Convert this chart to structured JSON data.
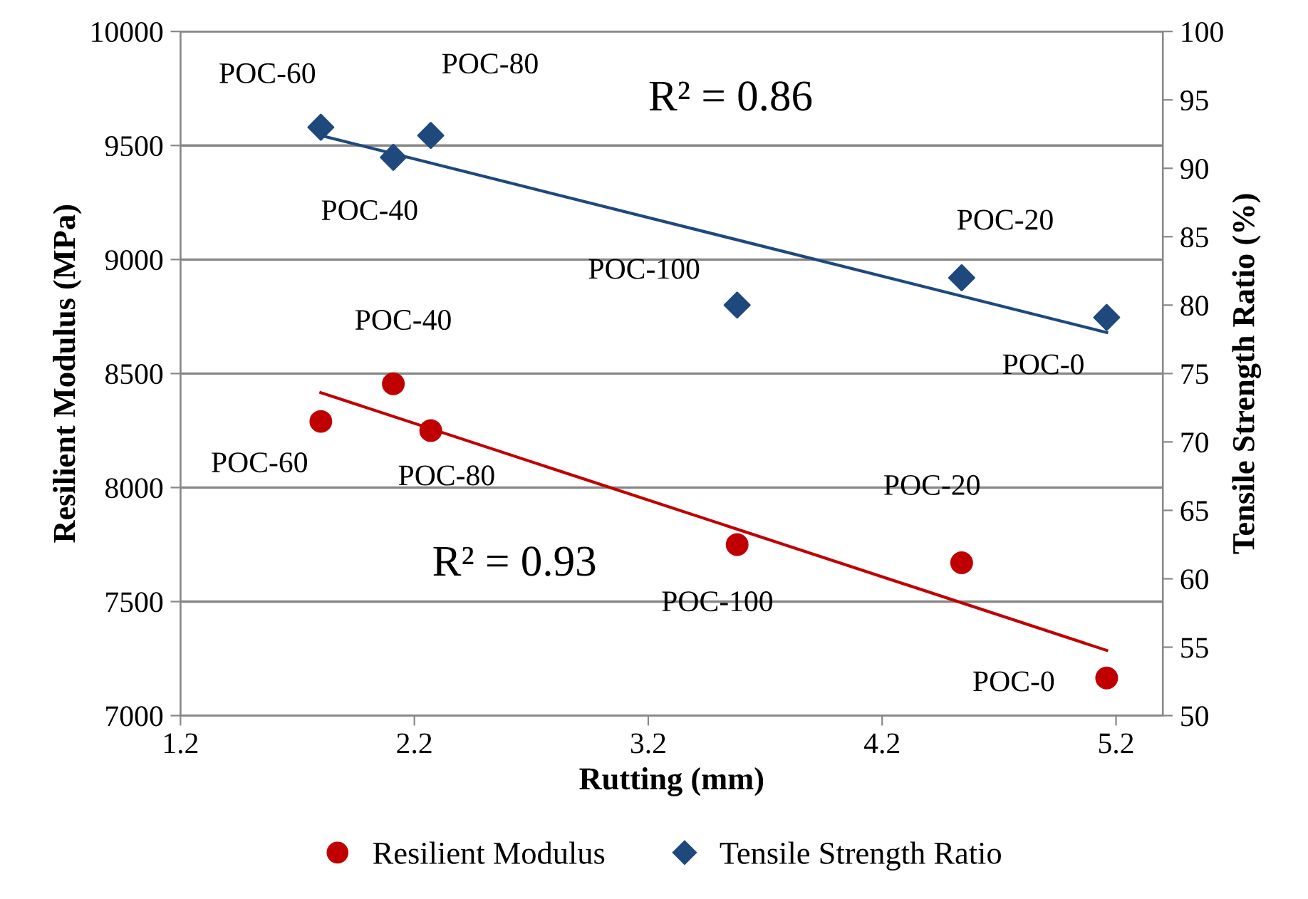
{
  "chart_data": {
    "type": "scatter",
    "xlabel": "Rutting (mm)",
    "ylabel": "Resilient Modulus (MPa)",
    "y2label": "Tensile Strength Ratio (%)",
    "xlim": [
      1.2,
      5.4
    ],
    "xticks": [
      1.2,
      2.2,
      3.2,
      4.2,
      5.2
    ],
    "ylim": [
      7000,
      10000
    ],
    "yticks": [
      7000,
      7500,
      8000,
      8500,
      9000,
      9500,
      10000
    ],
    "y2lim": [
      50,
      100
    ],
    "y2ticks": [
      50,
      55,
      60,
      65,
      70,
      75,
      80,
      85,
      90,
      95,
      100
    ],
    "grid": "y",
    "legend": "bottom",
    "series": [
      {
        "name": "Resilient Modulus",
        "color": "#c00000",
        "marker": "circle",
        "x": [
          1.8,
          2.11,
          2.27,
          3.58,
          4.54,
          5.16
        ],
        "values": [
          8290,
          8455,
          8250,
          7750,
          7670,
          7165
        ]
      },
      {
        "name": "Tensile Strength Ratio",
        "color": "#1f497d",
        "marker": "diamond",
        "axis": "y2",
        "x": [
          1.8,
          2.11,
          2.27,
          3.58,
          4.54,
          5.16
        ],
        "values": [
          93.0,
          90.8,
          92.4,
          80.0,
          82.0,
          79.1
        ]
      },
      {
        "type": "line",
        "color": "#c00000",
        "marker": "none",
        "x": [
          1.8,
          5.16
        ],
        "values": [
          8416,
          7286
        ]
      },
      {
        "type": "line",
        "color": "#1f497d",
        "marker": "none",
        "axis": "y2",
        "x": [
          1.8,
          5.16
        ],
        "values": [
          92.4,
          78.0
        ]
      }
    ],
    "annotations": [
      {
        "text": "POC-60",
        "x": 1.8,
        "y": 8290
      },
      {
        "text": "POC-40",
        "x": 2.11,
        "y": 8455
      },
      {
        "text": "POC-80",
        "x": 2.27,
        "y": 8250
      },
      {
        "text": "POC-100",
        "x": 3.58,
        "y": 7750
      },
      {
        "text": "POC-20",
        "x": 4.54,
        "y": 7670
      },
      {
        "text": "POC-0",
        "x": 5.16,
        "y": 7165
      },
      "R² = 0.93",
      {
        "text": "POC-60",
        "x": 1.8,
        "y": 9580
      },
      {
        "text": "POC-40",
        "x": 2.11,
        "y": 9448
      },
      {
        "text": "POC-80",
        "x": 2.27,
        "y": 9544
      },
      {
        "text": "POC-100",
        "x": 3.58,
        "y": 8800
      },
      {
        "text": "POC-20",
        "x": 4.54,
        "y": 8920
      },
      {
        "text": "POC-0",
        "x": 5.16,
        "y": 8746
      },
      "R² = 0.86"
    ]
  }
}
